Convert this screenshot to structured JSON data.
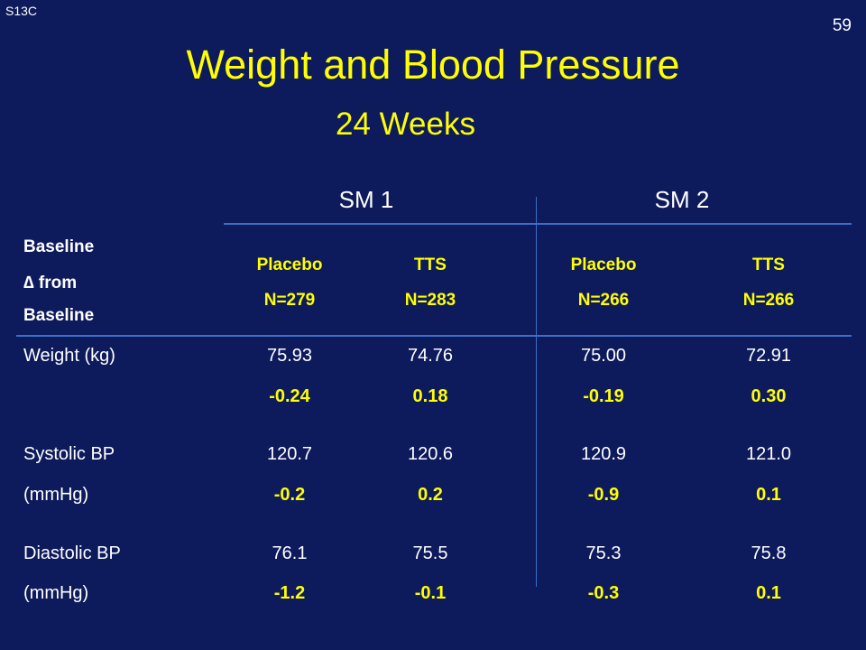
{
  "slide": {
    "id": "S13C",
    "page_number": "59",
    "title": "Weight and Blood Pressure",
    "subtitle": "24 Weeks"
  },
  "table": {
    "groups": [
      "SM 1",
      "SM 2"
    ],
    "key": {
      "line1": "Baseline",
      "line2": "∆ from",
      "line3": "Baseline"
    },
    "columns": [
      {
        "arm": "Placebo",
        "n": "N=279"
      },
      {
        "arm": "TTS",
        "n": "N=283"
      },
      {
        "arm": "Placebo",
        "n": "N=266"
      },
      {
        "arm": "TTS",
        "n": "N=266"
      }
    ],
    "rows": [
      {
        "label1": "Weight (kg)",
        "label2": "",
        "baseline": [
          "75.93",
          "74.76",
          "75.00",
          "72.91"
        ],
        "change": [
          "-0.24",
          "0.18",
          "-0.19",
          "0.30"
        ]
      },
      {
        "label1": "Systolic BP",
        "label2": "(mmHg)",
        "baseline": [
          "120.7",
          "120.6",
          "120.9",
          "121.0"
        ],
        "change": [
          "-0.2",
          "0.2",
          "-0.9",
          "0.1"
        ]
      },
      {
        "label1": "Diastolic BP",
        "label2": "(mmHg)",
        "baseline": [
          "76.1",
          "75.5",
          "75.3",
          "75.8"
        ],
        "change": [
          "-1.2",
          "-0.1",
          "-0.3",
          "0.1"
        ]
      }
    ]
  },
  "colors": {
    "background": "#0d1a5c",
    "title": "#ffff00",
    "rule": "#3b6fc8",
    "text": "#ffffff"
  }
}
